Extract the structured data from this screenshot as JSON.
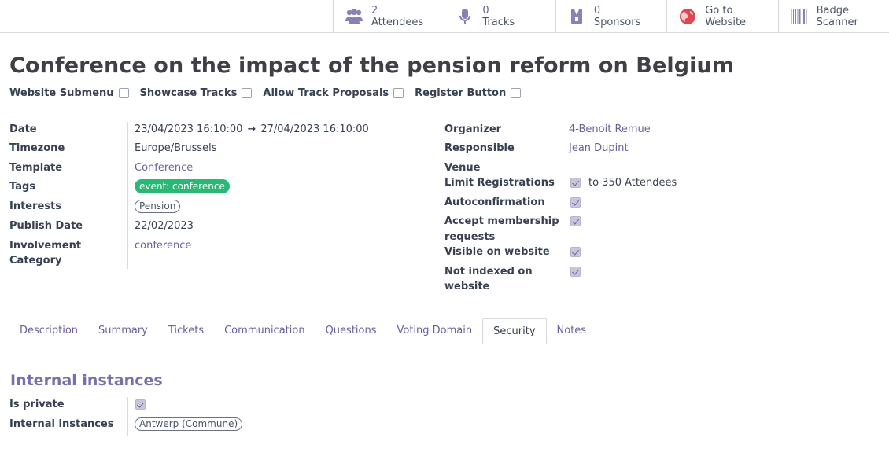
{
  "smart_buttons": [
    {
      "number": "2",
      "label": "Attendees",
      "icon": "users-icon"
    },
    {
      "number": "0",
      "label": "Tracks",
      "icon": "microphone-icon"
    },
    {
      "number": "0",
      "label": "Sponsors",
      "icon": "badge-icon"
    },
    {
      "number": "Go to",
      "label": "Website",
      "icon": "globe-icon"
    },
    {
      "number": "Badge",
      "label": "Scanner",
      "icon": "barcode-icon"
    }
  ],
  "title": "Conference on the impact of the pension reform on Belgium",
  "options": {
    "website_submenu": "Website Submenu",
    "showcase_tracks": "Showcase Tracks",
    "allow_track_proposals": "Allow Track Proposals",
    "register_button": "Register Button"
  },
  "left": {
    "date_label": "Date",
    "date_start": "23/04/2023 16:10:00",
    "date_arrow": "➞",
    "date_end": "27/04/2023 16:10:00",
    "timezone_label": "Timezone",
    "timezone": "Europe/Brussels",
    "template_label": "Template",
    "template": "Conference",
    "tags_label": "Tags",
    "tag": "event: conference",
    "interests_label": "Interests",
    "interest": "Pension",
    "publish_label": "Publish Date",
    "publish_date": "22/02/2023",
    "involvement_label_1": "Involvement",
    "involvement_label_2": "Category",
    "involvement": "conference"
  },
  "right": {
    "organizer_label": "Organizer",
    "organizer": "4-Benoit Remue",
    "responsible_label": "Responsible",
    "responsible": "Jean Dupint",
    "venue_label": "Venue",
    "limit_label": "Limit Registrations",
    "limit_text": "to 350 Attendees",
    "autoconf_label": "Autoconfirmation",
    "accept_label_1": "Accept membership",
    "accept_label_2": "requests",
    "visible_label": "Visible on website",
    "notindexed_label_1": "Not indexed on",
    "notindexed_label_2": "website"
  },
  "tabs": [
    "Description",
    "Summary",
    "Tickets",
    "Communication",
    "Questions",
    "Voting Domain",
    "Security",
    "Notes"
  ],
  "active_tab": "Security",
  "section": {
    "title": "Internal instances",
    "private_label": "Is private",
    "instances_label": "Internal instances",
    "instance": "Antwerp (Commune)"
  }
}
